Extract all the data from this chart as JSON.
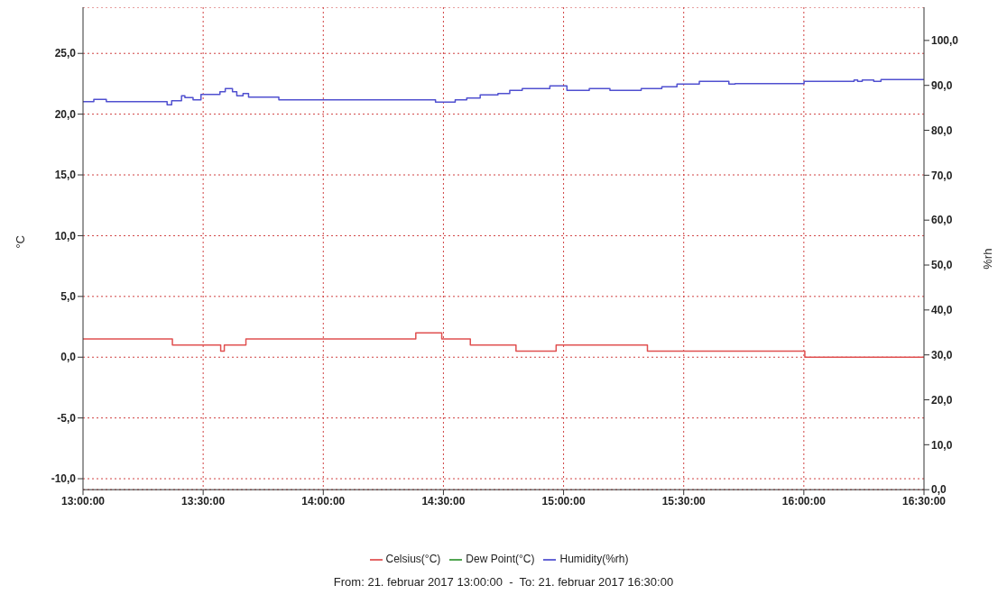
{
  "chart_data": {
    "type": "step",
    "ylabel": "°C",
    "y2label": "%rh",
    "annotations": [
      "From: 21. februar 2017 13:00:00  -  To: 21. februar 2017 16:30:00"
    ],
    "xlim": [
      13,
      16.5
    ],
    "xticks": [
      {
        "value": 13,
        "label": "13:00:00"
      },
      {
        "value": 13.5,
        "label": "13:30:00"
      },
      {
        "value": 14,
        "label": "14:00:00"
      },
      {
        "value": 14.5,
        "label": "14:30:00"
      },
      {
        "value": 15,
        "label": "15:00:00"
      },
      {
        "value": 15.5,
        "label": "15:30:00"
      },
      {
        "value": 16,
        "label": "16:00:00"
      },
      {
        "value": 16.5,
        "label": "16:30:00"
      }
    ],
    "ylim": [
      -10.9,
      28.8
    ],
    "yticks": [
      {
        "value": -10,
        "label": "-10,0"
      },
      {
        "value": -5,
        "label": "-5,0"
      },
      {
        "value": 0,
        "label": "0,0"
      },
      {
        "value": 5,
        "label": "5,0"
      },
      {
        "value": 10,
        "label": "10,0"
      },
      {
        "value": 15,
        "label": "15,0"
      },
      {
        "value": 20,
        "label": "20,0"
      },
      {
        "value": 25,
        "label": "25,0"
      }
    ],
    "y2lim": [
      0,
      107.4
    ],
    "y2ticks": [
      {
        "value": 0,
        "label": "0,0"
      },
      {
        "value": 10,
        "label": "10,0"
      },
      {
        "value": 20,
        "label": "20,0"
      },
      {
        "value": 30,
        "label": "30,0"
      },
      {
        "value": 40,
        "label": "40,0"
      },
      {
        "value": 50,
        "label": "50,0"
      },
      {
        "value": 60,
        "label": "60,0"
      },
      {
        "value": 70,
        "label": "70,0"
      },
      {
        "value": 80,
        "label": "80,0"
      },
      {
        "value": 90,
        "label": "90,0"
      },
      {
        "value": 100,
        "label": "100,0"
      }
    ],
    "grid": true,
    "legend": "bottom",
    "line_style": "solid",
    "marker": "none",
    "series": [
      {
        "name": "Celsius(°C)",
        "color": "#e05050",
        "x": [
          13,
          13.372,
          13.573,
          13.588,
          13.678,
          14.385,
          14.493,
          14.612,
          14.802,
          14.969,
          15.349,
          16.004,
          16.5
        ],
        "values": [
          1.5,
          1,
          0.5,
          1,
          1.5,
          2,
          1.5,
          1,
          0.5,
          1,
          0.5,
          0,
          0
        ]
      },
      {
        "name": "Dew Point(°C)",
        "color": "#3a9a3a"
      },
      {
        "name": "Humidity(%rh)",
        "color": "#5050d0",
        "axis": "y2",
        "x": [
          13,
          13.045,
          13.097,
          13.35,
          13.369,
          13.41,
          13.424,
          13.458,
          13.491,
          13.57,
          13.592,
          13.622,
          13.64,
          13.666,
          13.689,
          13.815,
          14.467,
          14.549,
          14.597,
          14.653,
          14.727,
          14.776,
          14.828,
          14.943,
          15.014,
          15.107,
          15.193,
          15.323,
          15.409,
          15.472,
          15.565,
          15.688,
          15.714,
          16.001,
          16.209,
          16.224,
          16.243,
          16.291,
          16.321,
          16.5
        ],
        "values": [
          86.4,
          86.9,
          86.4,
          85.7,
          86.6,
          87.7,
          87.3,
          86.8,
          88,
          88.6,
          89.3,
          88.6,
          87.7,
          88.2,
          87.4,
          86.8,
          86.3,
          86.8,
          87.2,
          87.9,
          88.2,
          88.9,
          89.3,
          89.9,
          88.9,
          89.3,
          88.9,
          89.3,
          89.7,
          90.3,
          90.9,
          90.3,
          90.4,
          90.9,
          91.2,
          90.9,
          91.2,
          90.9,
          91.3,
          91.3
        ]
      }
    ]
  }
}
